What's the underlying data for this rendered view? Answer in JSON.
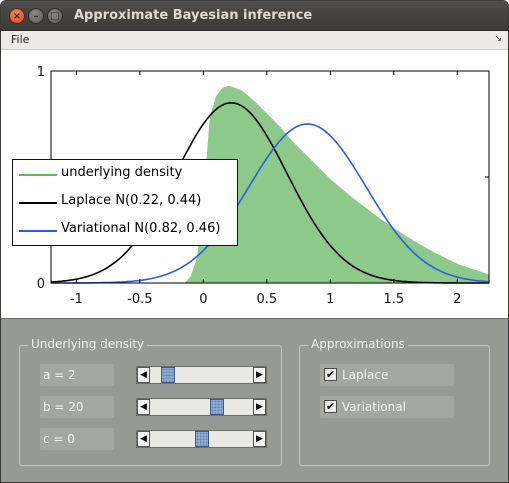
{
  "window": {
    "title": "Approximate Bayesian inference"
  },
  "menu": {
    "file_label": "File",
    "overflow_icon": "chevron-down-icon"
  },
  "chart_data": {
    "type": "area",
    "xlim": [
      -1.2,
      2.25
    ],
    "ylim": [
      0,
      1
    ],
    "x_ticks": [
      "-1",
      "-0.5",
      "0",
      "0.5",
      "1",
      "1.5",
      "2"
    ],
    "y_ticks": [
      "0",
      "1"
    ],
    "grid": false,
    "legend_position": "left",
    "series": [
      {
        "name": "underlying density",
        "kind": "area",
        "color": "#8cc98a",
        "x": [
          -0.15,
          -0.1,
          -0.05,
          0.0,
          0.05,
          0.1,
          0.15,
          0.2,
          0.3,
          0.4,
          0.5,
          0.6,
          0.7,
          0.8,
          0.9,
          1.0,
          1.2,
          1.4,
          1.6,
          1.8,
          2.0,
          2.25
        ],
        "y": [
          0.0,
          0.03,
          0.12,
          0.38,
          0.78,
          0.88,
          0.92,
          0.93,
          0.91,
          0.86,
          0.8,
          0.74,
          0.67,
          0.61,
          0.55,
          0.49,
          0.39,
          0.3,
          0.22,
          0.15,
          0.09,
          0.04
        ]
      },
      {
        "name": "Laplace N(0.22, 0.44)",
        "kind": "line",
        "color": "#000000",
        "mean": 0.22,
        "sd": 0.44,
        "peak": 0.85
      },
      {
        "name": "Variational N(0.82, 0.46)",
        "kind": "line",
        "color": "#2b5fd9",
        "mean": 0.82,
        "sd": 0.46,
        "peak": 0.75
      }
    ]
  },
  "legend": {
    "items": [
      {
        "label": "underlying density",
        "color": "#5fb45c"
      },
      {
        "label": "Laplace N(0.22, 0.44)",
        "color": "#000000"
      },
      {
        "label": "Variational N(0.82, 0.46)",
        "color": "#2b5fd9"
      }
    ]
  },
  "controls": {
    "density_group": {
      "title": "Underlying density",
      "params": [
        {
          "label": "a = 2",
          "value": 0.12
        },
        {
          "label": "b = 20",
          "value": 0.68
        },
        {
          "label": "c = 0",
          "value": 0.5
        }
      ]
    },
    "approx_group": {
      "title": "Approximations",
      "options": [
        {
          "label": "Laplace",
          "checked": true
        },
        {
          "label": "Variational",
          "checked": true
        }
      ]
    }
  }
}
